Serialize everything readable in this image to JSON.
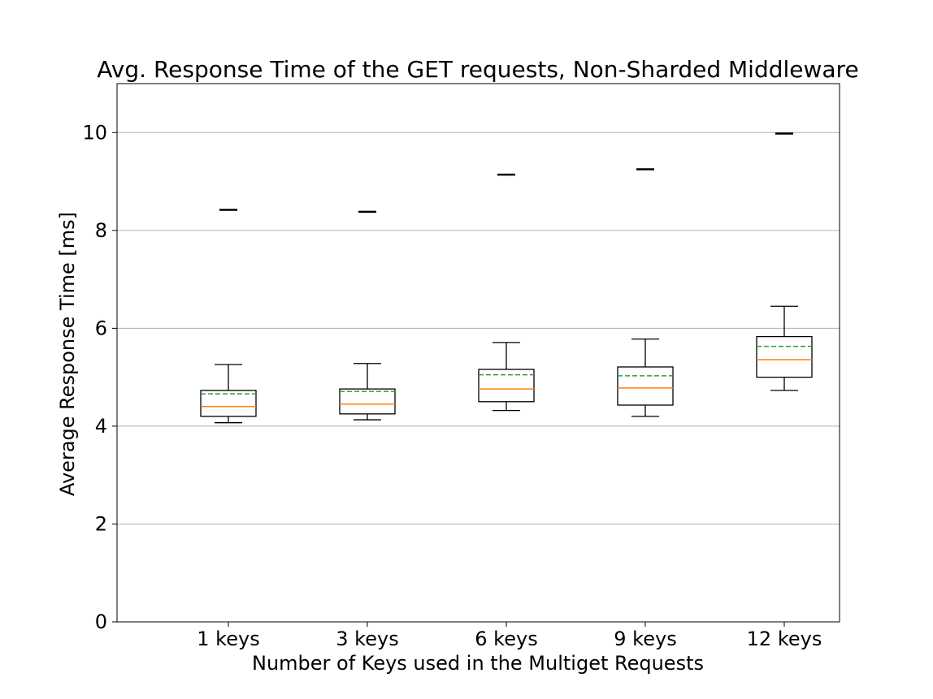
{
  "chart_data": {
    "type": "box",
    "title": "Avg. Response Time of the GET requests, Non-Sharded Middleware",
    "xlabel": "Number of Keys used in the Multiget Requests",
    "ylabel": "Average Response Time [ms]",
    "ylim": [
      0,
      11
    ],
    "yticks": [
      0,
      2,
      4,
      6,
      8,
      10
    ],
    "grid": "horizontal",
    "categories": [
      "1 keys",
      "3 keys",
      "6 keys",
      "9 keys",
      "12 keys"
    ],
    "boxes": [
      {
        "whisker_low": 4.07,
        "q1": 4.2,
        "median": 4.4,
        "mean": 4.66,
        "q3": 4.73,
        "whisker_high": 5.26,
        "outliers": [
          8.42
        ]
      },
      {
        "whisker_low": 4.13,
        "q1": 4.25,
        "median": 4.45,
        "mean": 4.71,
        "q3": 4.76,
        "whisker_high": 5.28,
        "outliers": [
          8.38
        ]
      },
      {
        "whisker_low": 4.32,
        "q1": 4.5,
        "median": 4.76,
        "mean": 5.05,
        "q3": 5.16,
        "whisker_high": 5.71,
        "outliers": [
          9.14
        ]
      },
      {
        "whisker_low": 4.2,
        "q1": 4.43,
        "median": 4.78,
        "mean": 5.03,
        "q3": 5.21,
        "whisker_high": 5.78,
        "outliers": [
          9.25
        ]
      },
      {
        "whisker_low": 4.73,
        "q1": 5.0,
        "median": 5.36,
        "mean": 5.63,
        "q3": 5.83,
        "whisker_high": 6.45,
        "outliers": [
          9.98
        ]
      }
    ],
    "colors": {
      "box": "#000000",
      "median": "#ff7f0e",
      "mean": "#2ca02c",
      "grid": "#b0b0b0"
    }
  }
}
